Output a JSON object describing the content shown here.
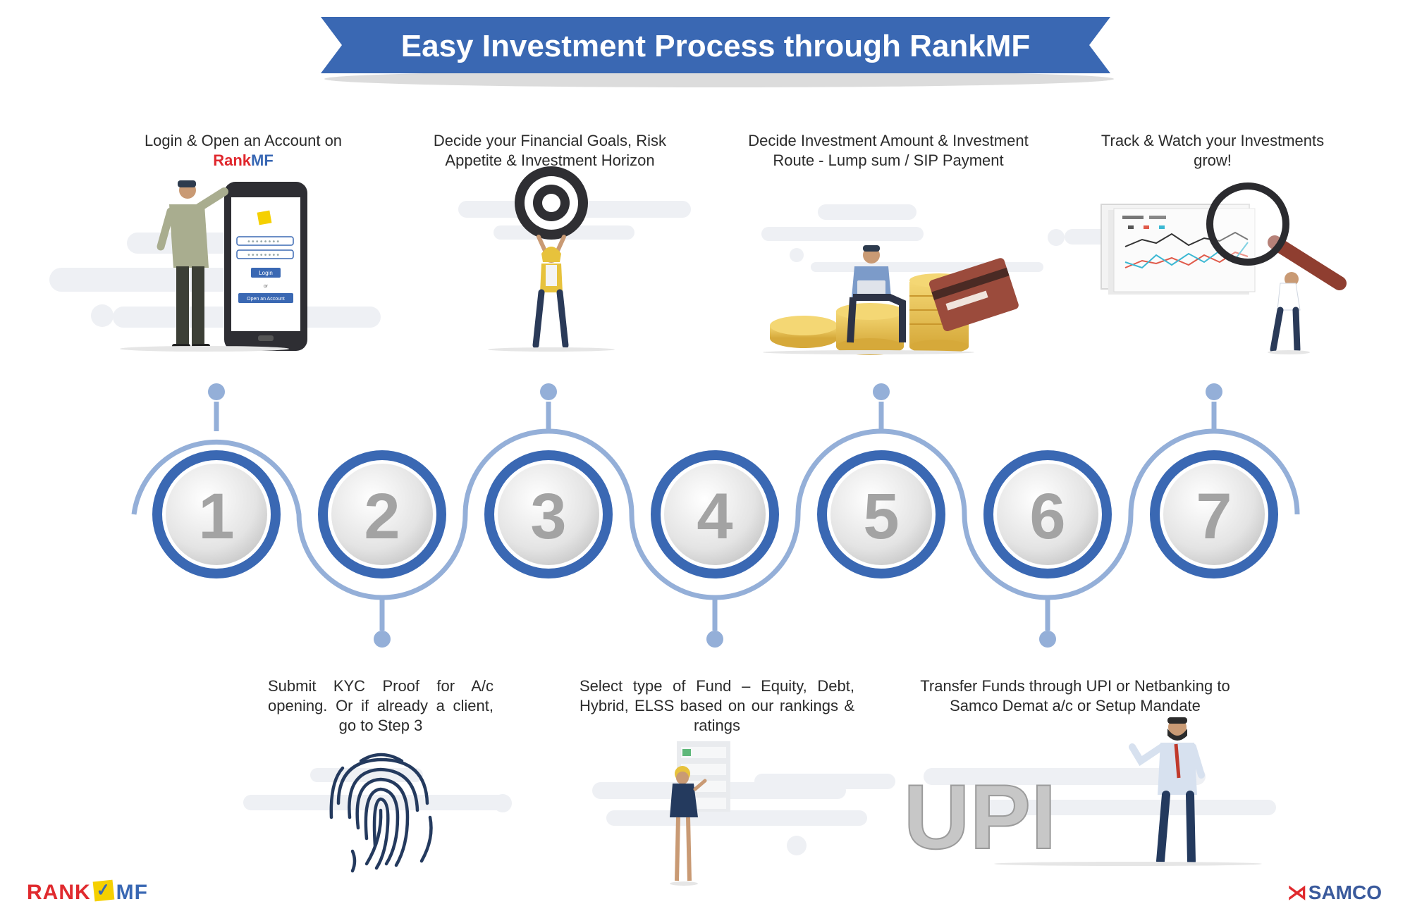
{
  "title": "Easy Investment Process through RankMF",
  "steps": [
    {
      "number": "1",
      "text": "Login & Open an Account on",
      "brand_red": "Rank",
      "brand_blue": "MF"
    },
    {
      "number": "2",
      "text": "Submit KYC Proof for A/c opening. Or if already a client, go to Step 3"
    },
    {
      "number": "3",
      "text": "Decide your Financial Goals, Risk Appetite & Investment Horizon"
    },
    {
      "number": "4",
      "text": "Select type of Fund – Equity, Debt, Hybrid, ELSS based on our rankings & ratings"
    },
    {
      "number": "5",
      "text": "Decide Investment Amount & Investment Route - Lump sum / SIP Payment"
    },
    {
      "number": "6",
      "text": "Transfer Funds through UPI or Netbanking to Samco Demat a/c or Setup Mandate"
    },
    {
      "number": "7",
      "text": "Track & Watch your Investments grow!"
    }
  ],
  "phone_ui": {
    "login_label": "Login",
    "or_label": "or",
    "open_account_label": "Open an Account",
    "password_mask": "••••••••"
  },
  "upi_label": "UPI",
  "logos": {
    "rankmf_left": "RANK",
    "rankmf_check": "✓",
    "rankmf_right": "MF",
    "samco_mark": "⋊",
    "samco": "SAMCO"
  },
  "colors": {
    "ribbon": "#3a68b3",
    "ring_dark": "#3a68b3",
    "ring_light": "#94afd8",
    "number": "#a3a3a3",
    "brand_red": "#e0282e"
  },
  "icons": [
    "person-with-phone",
    "target-icon",
    "person-with-coins",
    "magnifier-chart",
    "fingerprint-icon",
    "checklist-person",
    "upi-person"
  ]
}
